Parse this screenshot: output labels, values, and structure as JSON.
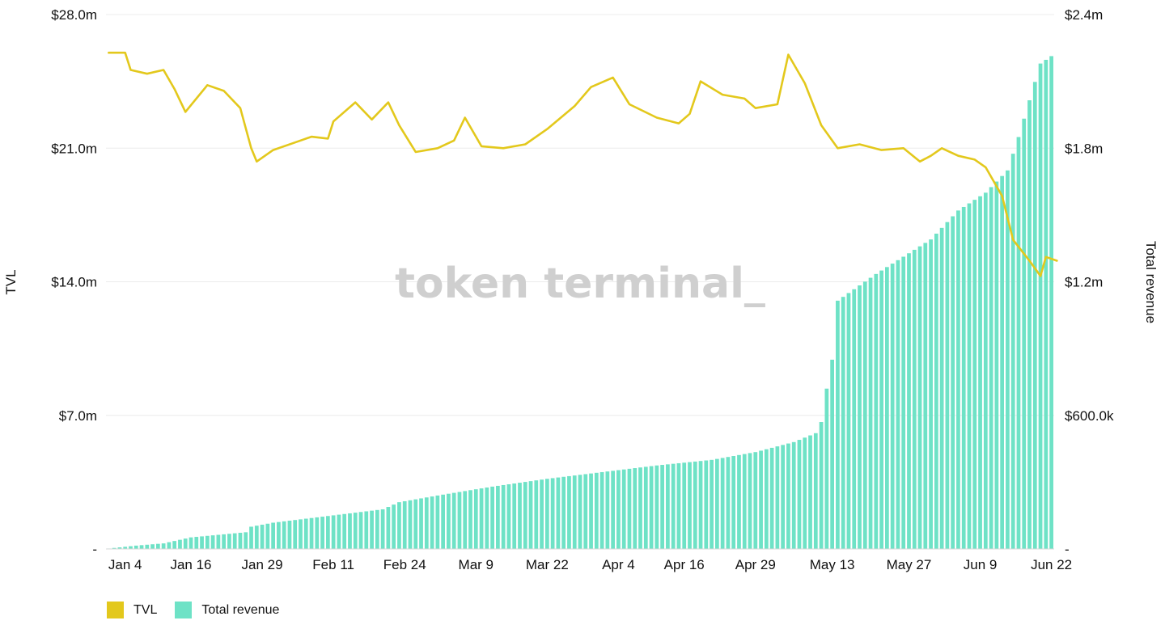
{
  "colors": {
    "tvl": "#e3c81c",
    "revenue": "#6ee2c6",
    "grid": "#ececec",
    "text": "#111111",
    "watermark": "#cfcfcf"
  },
  "watermark": "token terminal_",
  "legend": [
    {
      "label": "TVL",
      "color": "#e3c81c"
    },
    {
      "label": "Total revenue",
      "color": "#6ee2c6"
    }
  ],
  "chart_data": {
    "type": "bar",
    "title": "",
    "ylabel_left": "TVL",
    "ylabel_right": "Total revenue",
    "grid": true,
    "legend_position": "bottom-left",
    "x_tick_labels": [
      "Jan 4",
      "Jan 16",
      "Jan 29",
      "Feb 11",
      "Feb 24",
      "Mar 9",
      "Mar 22",
      "Apr 4",
      "Apr 16",
      "Apr 29",
      "May 13",
      "May 27",
      "Jun 9",
      "Jun 22"
    ],
    "x_tick_days": [
      3,
      15,
      28,
      41,
      54,
      67,
      80,
      93,
      105,
      118,
      132,
      146,
      159,
      172
    ],
    "day_count": 173,
    "y_left": {
      "range": [
        0,
        28000000
      ],
      "ticks": [
        0,
        7000000,
        14000000,
        21000000,
        28000000
      ],
      "tick_labels": [
        "-",
        "$7.0m",
        "$14.0m",
        "$21.0m",
        "$28.0m"
      ]
    },
    "y_right": {
      "range": [
        0,
        2400000
      ],
      "ticks": [
        0,
        600000,
        1200000,
        1800000,
        2400000
      ],
      "tick_labels": [
        "-",
        "$600.0k",
        "$1.2m",
        "$1.8m",
        "$2.4m"
      ]
    },
    "series": [
      {
        "name": "Total revenue",
        "type": "bar",
        "axis": "right",
        "color": "#6ee2c6",
        "points": [
          [
            0,
            2000
          ],
          [
            5,
            15000
          ],
          [
            10,
            25000
          ],
          [
            15,
            52000
          ],
          [
            25,
            75000
          ],
          [
            26,
            100000
          ],
          [
            30,
            118000
          ],
          [
            40,
            148000
          ],
          [
            50,
            178000
          ],
          [
            53,
            210000
          ],
          [
            60,
            240000
          ],
          [
            70,
            280000
          ],
          [
            80,
            315000
          ],
          [
            90,
            345000
          ],
          [
            100,
            375000
          ],
          [
            110,
            400000
          ],
          [
            118,
            435000
          ],
          [
            125,
            480000
          ],
          [
            129,
            520000
          ],
          [
            130,
            570000
          ],
          [
            131,
            720000
          ],
          [
            132,
            850000
          ],
          [
            133,
            1115000
          ],
          [
            140,
            1235000
          ],
          [
            150,
            1390000
          ],
          [
            155,
            1520000
          ],
          [
            160,
            1600000
          ],
          [
            164,
            1700000
          ],
          [
            166,
            1850000
          ],
          [
            170,
            2180000
          ],
          [
            173,
            2230000
          ]
        ]
      },
      {
        "name": "TVL",
        "type": "line",
        "axis": "left",
        "color": "#e3c81c",
        "points": [
          [
            0,
            26000000
          ],
          [
            3,
            26000000
          ],
          [
            4,
            25100000
          ],
          [
            7,
            24900000
          ],
          [
            10,
            25100000
          ],
          [
            12,
            24100000
          ],
          [
            14,
            22900000
          ],
          [
            18,
            24300000
          ],
          [
            21,
            24000000
          ],
          [
            24,
            23100000
          ],
          [
            26,
            21000000
          ],
          [
            27,
            20300000
          ],
          [
            30,
            20900000
          ],
          [
            34,
            21300000
          ],
          [
            37,
            21600000
          ],
          [
            40,
            21500000
          ],
          [
            41,
            22400000
          ],
          [
            45,
            23400000
          ],
          [
            48,
            22500000
          ],
          [
            51,
            23400000
          ],
          [
            53,
            22200000
          ],
          [
            56,
            20800000
          ],
          [
            60,
            21000000
          ],
          [
            63,
            21400000
          ],
          [
            65,
            22600000
          ],
          [
            68,
            21100000
          ],
          [
            72,
            21000000
          ],
          [
            76,
            21200000
          ],
          [
            80,
            22000000
          ],
          [
            85,
            23200000
          ],
          [
            88,
            24200000
          ],
          [
            92,
            24700000
          ],
          [
            95,
            23300000
          ],
          [
            100,
            22600000
          ],
          [
            104,
            22300000
          ],
          [
            106,
            22800000
          ],
          [
            108,
            24500000
          ],
          [
            112,
            23800000
          ],
          [
            116,
            23600000
          ],
          [
            118,
            23100000
          ],
          [
            122,
            23300000
          ],
          [
            124,
            25900000
          ],
          [
            127,
            24400000
          ],
          [
            130,
            22200000
          ],
          [
            133,
            21000000
          ],
          [
            137,
            21200000
          ],
          [
            141,
            20900000
          ],
          [
            145,
            21000000
          ],
          [
            148,
            20300000
          ],
          [
            150,
            20600000
          ],
          [
            152,
            21000000
          ],
          [
            155,
            20600000
          ],
          [
            158,
            20400000
          ],
          [
            160,
            20000000
          ],
          [
            163,
            18500000
          ],
          [
            165,
            16200000
          ],
          [
            168,
            15100000
          ],
          [
            170,
            14300000
          ],
          [
            171,
            15300000
          ],
          [
            173,
            15100000
          ]
        ]
      }
    ]
  }
}
